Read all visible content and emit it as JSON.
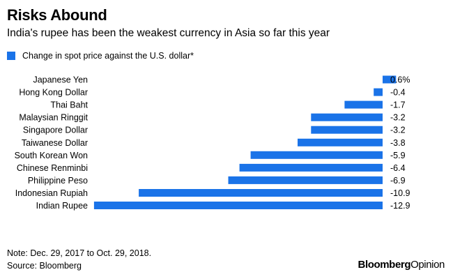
{
  "title": "Risks Abound",
  "subtitle": "India's rupee has been the weakest currency in Asia so far this year",
  "colors": {
    "bar": "#1a73e8"
  },
  "footer": {
    "note": "Note: Dec. 29, 2017 to Oct. 29, 2018.",
    "source": "Source: Bloomberg",
    "brand_bold": "Bloomberg",
    "brand_regular": "Opinion"
  },
  "chart_data": {
    "type": "bar",
    "orientation": "horizontal",
    "legend": {
      "label": "Change in spot price against the U.S. dollar*",
      "position": "top-left"
    },
    "grid": false,
    "categories": [
      "Japanese Yen",
      "Hong Kong Dollar",
      "Thai Baht",
      "Malaysian Ringgit",
      "Singapore Dollar",
      "Taiwanese Dollar",
      "South Korean Won",
      "Chinese Renminbi",
      "Philippine Peso",
      "Indonesian Rupiah",
      "Indian Rupee"
    ],
    "values": [
      0.6,
      -0.4,
      -1.7,
      -3.2,
      -3.2,
      -3.8,
      -5.9,
      -6.4,
      -6.9,
      -10.9,
      -12.9
    ],
    "value_labels": [
      "0.6%",
      "-0.4",
      "-1.7",
      "-3.2",
      "-3.2",
      "-3.8",
      "-5.9",
      "-6.4",
      "-6.9",
      "-10.9",
      "-12.9"
    ],
    "xlim": [
      -12.9,
      0.6
    ]
  }
}
